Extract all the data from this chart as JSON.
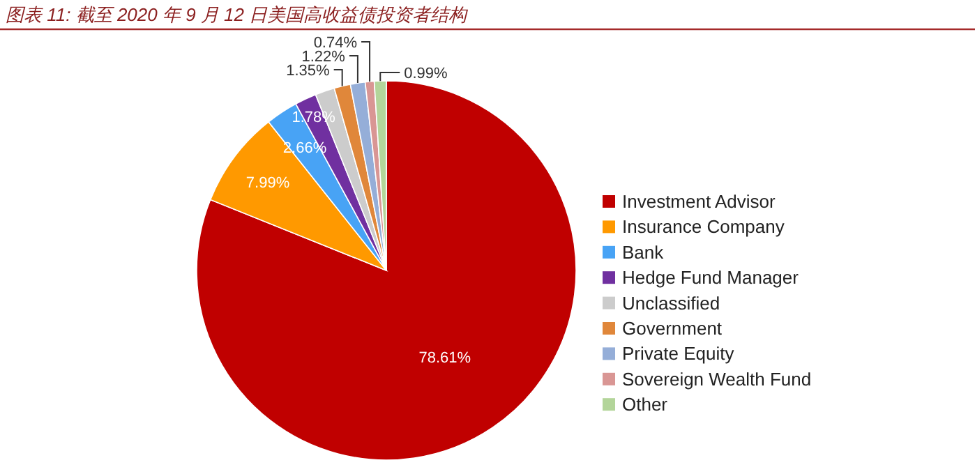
{
  "chart_data": {
    "type": "pie",
    "title": "图表 11: 截至 2020 年 9 月 12 日美国高收益债投资者结构",
    "categories": [
      "Investment Advisor",
      "Insurance Company",
      "Bank",
      "Hedge Fund Manager",
      "Unclassified",
      "Government",
      "Private Equity",
      "Sovereign Wealth Fund",
      "Other"
    ],
    "values": [
      78.61,
      7.99,
      2.66,
      1.78,
      1.6,
      1.35,
      1.22,
      0.74,
      0.99
    ],
    "value_labels": [
      "78.61%",
      "7.99%",
      "2.66%",
      "1.78%",
      null,
      "1.35%",
      "1.22%",
      "0.74%",
      "0.99%"
    ],
    "colors": [
      "#c00000",
      "#ff9900",
      "#48a3f5",
      "#7030a0",
      "#cccccc",
      "#e0873a",
      "#95aed8",
      "#d99694",
      "#b3d59a"
    ],
    "legend": "right"
  }
}
